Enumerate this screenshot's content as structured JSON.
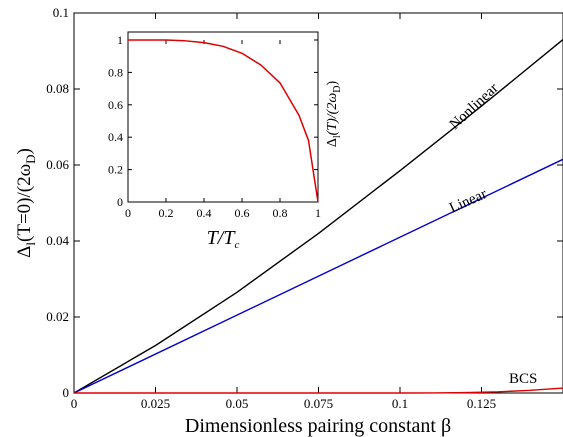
{
  "chart_data": [
    {
      "type": "line",
      "xlabel": "Dimensionless pairing constant β",
      "ylabel": "Δl(T=0)/(2ωD)",
      "ylabel_parts": {
        "main": "Δ",
        "sub1": "l",
        "mid": "(T=0)/(2ω",
        "sub2": "D",
        "end": ")"
      },
      "xlim": [
        0,
        0.15
      ],
      "ylim": [
        0,
        0.1
      ],
      "xticks": [
        0,
        0.025,
        0.05,
        0.075,
        0.1,
        0.125
      ],
      "xtick_labels": [
        "0",
        "0.025",
        "0.05",
        "0.075",
        "0.1",
        "0.125"
      ],
      "yticks": [
        0,
        0.02,
        0.04,
        0.06,
        0.08,
        0.1
      ],
      "ytick_labels": [
        "0",
        "0.02",
        "0.04",
        "0.06",
        "0.08",
        "0.1"
      ],
      "grid": false,
      "series": [
        {
          "name": "Nonlinear",
          "color": "#000000",
          "x": [
            0,
            0.025,
            0.05,
            0.075,
            0.1,
            0.125,
            0.15
          ],
          "y": [
            0,
            0.0125,
            0.0265,
            0.042,
            0.0585,
            0.0755,
            0.093
          ]
        },
        {
          "name": "Linear",
          "color": "#0000cc",
          "x": [
            0,
            0.15
          ],
          "y": [
            0,
            0.0615
          ]
        },
        {
          "name": "BCS",
          "color": "#dd0000",
          "x": [
            0,
            0.1,
            0.11,
            0.12,
            0.13,
            0.14,
            0.15
          ],
          "y": [
            0,
            0,
            2e-05,
            0.0001,
            0.0003,
            0.0007,
            0.0013
          ]
        }
      ],
      "annotations": [
        "Nonlinear",
        "Linear",
        "BCS"
      ]
    },
    {
      "type": "line",
      "xlabel": "T/Tc",
      "xlabel_parts": {
        "main": "T/T",
        "sub": "c"
      },
      "ylabel": "Δl(T)/(2ωD)",
      "ylabel_parts": {
        "main": "Δ",
        "sub1": "l",
        "mid": "(T)/(2ω",
        "sub2": "D",
        "end": ")"
      },
      "xlim": [
        0,
        1
      ],
      "ylim": [
        0,
        1
      ],
      "xticks": [
        0,
        0.2,
        0.4,
        0.6,
        0.8,
        1
      ],
      "xtick_labels": [
        "0",
        "0.2",
        "0.4",
        "0.6",
        "0.8",
        "1"
      ],
      "yticks": [
        0,
        0.2,
        0.4,
        0.6,
        0.8,
        1
      ],
      "ytick_labels": [
        "0",
        "0.2",
        "0.4",
        "0.6",
        "0.8",
        "1"
      ],
      "grid": false,
      "series": [
        {
          "color": "#dd0000",
          "x": [
            0,
            0.2,
            0.3,
            0.4,
            0.5,
            0.6,
            0.7,
            0.8,
            0.9,
            0.95,
            1.0
          ],
          "y": [
            1.0,
            1.0,
            0.995,
            0.984,
            0.961,
            0.918,
            0.845,
            0.735,
            0.535,
            0.38,
            0.0
          ]
        }
      ]
    }
  ]
}
